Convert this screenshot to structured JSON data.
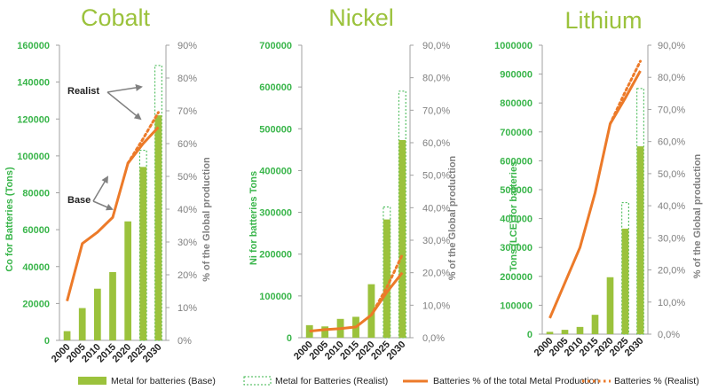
{
  "colors": {
    "bar_base": "#9bc23c",
    "bar_realist_outline": "#39b54a",
    "line_base": "#ec7a29",
    "line_realist": "#ec7a29",
    "title": "#9bc23c",
    "left_axis_text": "#39b54a",
    "right_axis_text": "#808080",
    "axis_line": "#a0a0a0"
  },
  "legend": {
    "bar_base": "Metal for batteries (Base)",
    "bar_realist": "Metal for Batteries (Realist)",
    "line_base": "Batteries % of the total Metal Production",
    "line_realist": "Batteries % (Realist)"
  },
  "chart_data": [
    {
      "type": "bar",
      "title": "Cobalt",
      "categories": [
        "2000",
        "2005",
        "2010",
        "2015",
        "2020",
        "2025",
        "2030"
      ],
      "ylabel": "Co for Batteries (Tons)",
      "y2label": "% of the Global production",
      "ylim": [
        0,
        160000
      ],
      "y_ticks": [
        "0",
        "20000",
        "40000",
        "60000",
        "80000",
        "100000",
        "120000",
        "140000",
        "160000"
      ],
      "y2lim": [
        0,
        90
      ],
      "y2_ticks": [
        "0%",
        "10%",
        "20%",
        "30%",
        "40%",
        "50%",
        "60%",
        "70%",
        "80%",
        "90%"
      ],
      "bars_base": [
        5000,
        17500,
        28000,
        37000,
        64500,
        94000,
        122000
      ],
      "bars_realist": [
        null,
        null,
        null,
        null,
        null,
        103000,
        149000
      ],
      "line_base_pct": [
        12,
        29.5,
        33,
        37.5,
        54,
        60,
        65
      ],
      "line_realist_pct": [
        null,
        null,
        null,
        null,
        null,
        61.5,
        69.5
      ],
      "annotations": [
        {
          "text": "Realist",
          "target": "realist line"
        },
        {
          "text": "Base",
          "target": "base line"
        }
      ]
    },
    {
      "type": "bar",
      "title": "Nickel",
      "categories": [
        "2000",
        "2005",
        "2010",
        "2015",
        "2020",
        "2025",
        "2030"
      ],
      "ylabel": "Ni for batteries Tons",
      "y2label": "% of the Global production",
      "ylim": [
        0,
        700000
      ],
      "y_ticks": [
        "0",
        "100000",
        "200000",
        "300000",
        "400000",
        "500000",
        "600000",
        "700000"
      ],
      "y2lim": [
        0,
        90
      ],
      "y2_ticks": [
        "0,0%",
        "10,0%",
        "20,0%",
        "30,0%",
        "40,0%",
        "50,0%",
        "60,0%",
        "70,0%",
        "80,0%",
        "90,0%"
      ],
      "bars_base": [
        30000,
        27000,
        45000,
        50000,
        128000,
        283000,
        473000
      ],
      "bars_realist": [
        null,
        null,
        null,
        null,
        null,
        313000,
        590000
      ],
      "line_base_pct": [
        2,
        2.5,
        2.8,
        3.3,
        7,
        14,
        20
      ],
      "line_realist_pct": [
        null,
        null,
        null,
        null,
        null,
        15.5,
        25.5
      ],
      "annotations": []
    },
    {
      "type": "bar",
      "title": "Lithium",
      "categories": [
        "2000",
        "2005",
        "2010",
        "2015",
        "2020",
        "2025",
        "2030"
      ],
      "ylabel": "Tons (LCE) for batteries",
      "y2label": "% of the Global production",
      "ylim": [
        0,
        1000000
      ],
      "y_ticks": [
        "0",
        "100000",
        "200000",
        "300000",
        "400000",
        "500000",
        "600000",
        "700000",
        "800000",
        "900000",
        "1000000"
      ],
      "y2lim": [
        0,
        90
      ],
      "y2_ticks": [
        "0,0%",
        "10,0%",
        "20,0%",
        "30,0%",
        "40,0%",
        "50,0%",
        "60,0%",
        "70,0%",
        "80,0%",
        "90,0%"
      ],
      "bars_base": [
        8000,
        15000,
        25000,
        67000,
        197000,
        365000,
        650000
      ],
      "bars_realist": [
        null,
        null,
        null,
        null,
        null,
        455000,
        850000
      ],
      "line_base_pct": [
        5,
        16,
        27,
        44,
        65.5,
        73.5,
        82
      ],
      "line_realist_pct": [
        null,
        null,
        null,
        null,
        null,
        75.5,
        85
      ],
      "annotations": []
    }
  ]
}
